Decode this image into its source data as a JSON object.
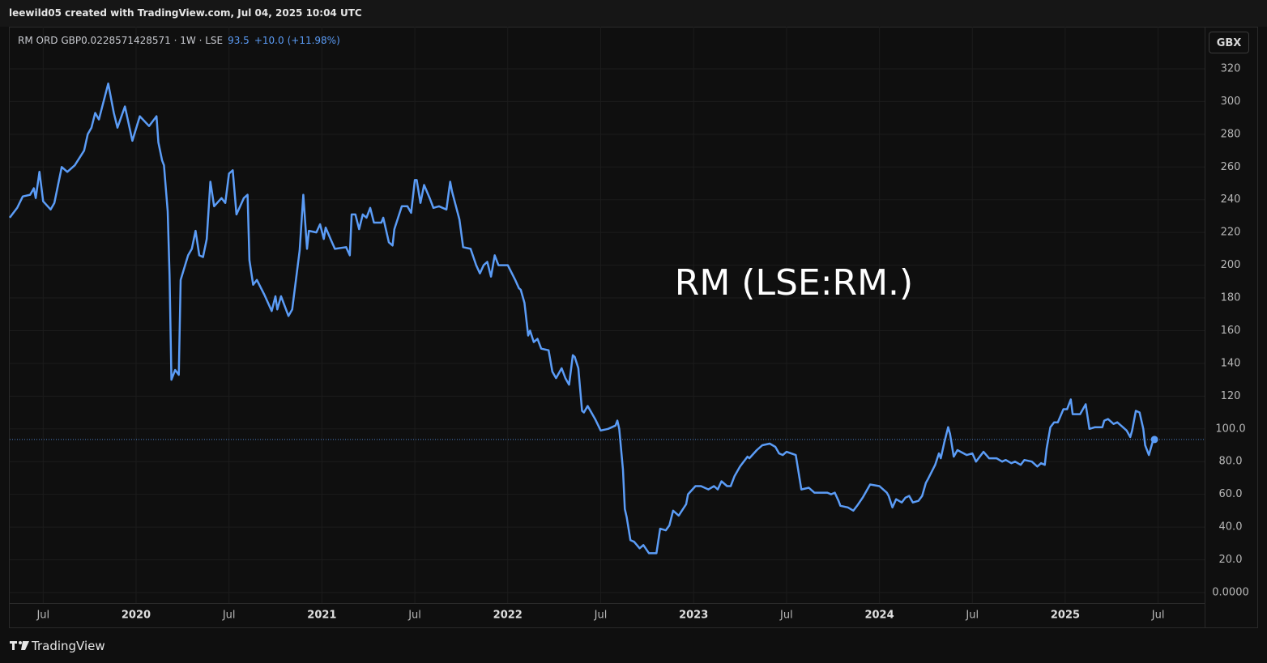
{
  "header": "leewild05 created with TradingView.com, Jul 04, 2025 10:04 UTC",
  "footer": "TradingView",
  "chart_data": {
    "type": "line",
    "title": "RM (LSE:RM.)",
    "currency": "GBX",
    "legend": {
      "price": "93.5",
      "change": "+10.0",
      "change_pct": "(+11.98%)"
    },
    "series": [
      {
        "name": "RM ORD GBP0.0228571428571 · 1W · LSE",
        "color": "#5b9cf6",
        "x": [
          2019.32,
          2019.36,
          2019.39,
          2019.43,
          2019.45,
          2019.46,
          2019.48,
          2019.5,
          2019.54,
          2019.56,
          2019.6,
          2019.63,
          2019.67,
          2019.72,
          2019.74,
          2019.76,
          2019.78,
          2019.8,
          2019.85,
          2019.88,
          2019.9,
          2019.94,
          2019.98,
          2020.02,
          2020.07,
          2020.11,
          2020.12,
          2020.14,
          2020.15,
          2020.17,
          2020.18,
          2020.19,
          2020.21,
          2020.23,
          2020.24,
          2020.28,
          2020.3,
          2020.32,
          2020.34,
          2020.36,
          2020.38,
          2020.4,
          2020.42,
          2020.46,
          2020.48,
          2020.5,
          2020.52,
          2020.54,
          2020.58,
          2020.6,
          2020.61,
          2020.63,
          2020.65,
          2020.69,
          2020.73,
          2020.75,
          2020.76,
          2020.78,
          2020.82,
          2020.84,
          2020.86,
          2020.88,
          2020.9,
          2020.92,
          2020.93,
          2020.97,
          2020.99,
          2021.01,
          2021.02,
          2021.05,
          2021.07,
          2021.13,
          2021.15,
          2021.16,
          2021.18,
          2021.2,
          2021.22,
          2021.24,
          2021.26,
          2021.28,
          2021.32,
          2021.33,
          2021.36,
          2021.38,
          2021.39,
          2021.43,
          2021.46,
          2021.48,
          2021.5,
          2021.51,
          2021.53,
          2021.55,
          2021.58,
          2021.6,
          2021.63,
          2021.67,
          2021.69,
          2021.7,
          2021.74,
          2021.76,
          2021.8,
          2021.83,
          2021.85,
          2021.87,
          2021.89,
          2021.91,
          2021.93,
          2021.95,
          2022.0,
          2022.04,
          2022.06,
          2022.07,
          2022.09,
          2022.11,
          2022.12,
          2022.14,
          2022.16,
          2022.18,
          2022.22,
          2022.24,
          2022.26,
          2022.29,
          2022.31,
          2022.33,
          2022.35,
          2022.36,
          2022.38,
          2022.4,
          2022.41,
          2022.43,
          2022.47,
          2022.5,
          2022.54,
          2022.58,
          2022.59,
          2022.6,
          2022.62,
          2022.63,
          2022.64,
          2022.66,
          2022.68,
          2022.71,
          2022.73,
          2022.76,
          2022.78,
          2022.8,
          2022.82,
          2022.85,
          2022.87,
          2022.89,
          2022.92,
          2022.96,
          2022.97,
          2023.01,
          2023.04,
          2023.08,
          2023.11,
          2023.13,
          2023.15,
          2023.18,
          2023.2,
          2023.22,
          2023.25,
          2023.29,
          2023.3,
          2023.34,
          2023.37,
          2023.41,
          2023.44,
          2023.46,
          2023.48,
          2023.5,
          2023.55,
          2023.57,
          2023.58,
          2023.62,
          2023.65,
          2023.69,
          2023.72,
          2023.74,
          2023.76,
          2023.78,
          2023.79,
          2023.83,
          2023.86,
          2023.88,
          2023.91,
          2023.95,
          2024.0,
          2024.04,
          2024.05,
          2024.07,
          2024.09,
          2024.12,
          2024.14,
          2024.16,
          2024.18,
          2024.21,
          2024.23,
          2024.25,
          2024.26,
          2024.3,
          2024.32,
          2024.33,
          2024.35,
          2024.37,
          2024.38,
          2024.4,
          2024.42,
          2024.47,
          2024.5,
          2024.52,
          2024.56,
          2024.59,
          2024.63,
          2024.66,
          2024.68,
          2024.71,
          2024.73,
          2024.76,
          2024.78,
          2024.82,
          2024.85,
          2024.87,
          2024.89,
          2024.9,
          2024.92,
          2024.94,
          2024.96,
          2024.99,
          2025.01,
          2025.03,
          2025.04,
          2025.08,
          2025.11,
          2025.13,
          2025.16,
          2025.2,
          2025.21,
          2025.23,
          2025.26,
          2025.28,
          2025.31,
          2025.33,
          2025.35,
          2025.36,
          2025.38,
          2025.4,
          2025.42,
          2025.43,
          2025.45,
          2025.47,
          2025.48
        ],
        "values": [
          229,
          235,
          242,
          243,
          247,
          241,
          257,
          239,
          234,
          238,
          260,
          257,
          261,
          270,
          280,
          284,
          293,
          289,
          311,
          293,
          284,
          297,
          276,
          291,
          285,
          291,
          275,
          264,
          261,
          233,
          194,
          130,
          136,
          133,
          191,
          206,
          210,
          221,
          206,
          205,
          216,
          251,
          236,
          241,
          238,
          256,
          258,
          231,
          241,
          243,
          203,
          188,
          191,
          182,
          172,
          181,
          173,
          181,
          169,
          173,
          191,
          209,
          243,
          210,
          221,
          220,
          225,
          216,
          223,
          215,
          210,
          211,
          206,
          231,
          231,
          222,
          231,
          229,
          235,
          226,
          226,
          229,
          214,
          212,
          222,
          236,
          236,
          232,
          252,
          252,
          238,
          249,
          241,
          235,
          236,
          234,
          251,
          245,
          228,
          211,
          210,
          200,
          195,
          200,
          202,
          193,
          206,
          200,
          200,
          191,
          186,
          185,
          177,
          157,
          160,
          153,
          155,
          149,
          148,
          135,
          131,
          137,
          131,
          127,
          145,
          144,
          137,
          111,
          110,
          114,
          106,
          99,
          100,
          102,
          105,
          100,
          75,
          51,
          46,
          32,
          31,
          27,
          29,
          24,
          24,
          24,
          39,
          38,
          41,
          50,
          47,
          54,
          60,
          65,
          65,
          63,
          65,
          63,
          68,
          65,
          65,
          71,
          77,
          83,
          82,
          87,
          90,
          91,
          89,
          85,
          84,
          86,
          84,
          70,
          63,
          64,
          61,
          61,
          61,
          60,
          61,
          56,
          53,
          52,
          50,
          53,
          58,
          66,
          65,
          61,
          59,
          52,
          57,
          55,
          58,
          59,
          55,
          56,
          59,
          67,
          69,
          78,
          85,
          82,
          92,
          101,
          97,
          83,
          87,
          84,
          85,
          80,
          86,
          82,
          82,
          80,
          81,
          79,
          80,
          78,
          81,
          80,
          77,
          79,
          78,
          88,
          101,
          104,
          104,
          112,
          112,
          118,
          109,
          109,
          115,
          100,
          101,
          101,
          105,
          106,
          103,
          104,
          101,
          99,
          95,
          99,
          111,
          110,
          100,
          90,
          84,
          92,
          93.5
        ]
      }
    ],
    "xlim": [
      2019.32,
      2025.75
    ],
    "xticks": [
      {
        "value": 2019.5,
        "label": "Jul"
      },
      2020,
      {
        "value": 2020.5,
        "label": "Jul"
      },
      2021,
      {
        "value": 2021.5,
        "label": "Jul"
      },
      2022,
      {
        "value": 2022.5,
        "label": "Jul"
      },
      2023,
      {
        "value": 2023.5,
        "label": "Jul"
      },
      2024,
      {
        "value": 2024.5,
        "label": "Jul"
      },
      2025,
      {
        "value": 2025.5,
        "label": "Jul"
      }
    ],
    "ylim": [
      -21.3,
      345.7
    ],
    "yticks": [
      320,
      300,
      280,
      260,
      240,
      220,
      200,
      180,
      160,
      140,
      120,
      {
        "value": 100,
        "label": "100.0"
      },
      {
        "value": 80,
        "label": "80.0"
      },
      {
        "value": 60,
        "label": "60.0"
      },
      {
        "value": 40,
        "label": "40.0"
      },
      {
        "value": 20,
        "label": "20.0"
      },
      {
        "value": 0,
        "label": "0.0000"
      }
    ],
    "grid": true,
    "last_price_line": true
  }
}
